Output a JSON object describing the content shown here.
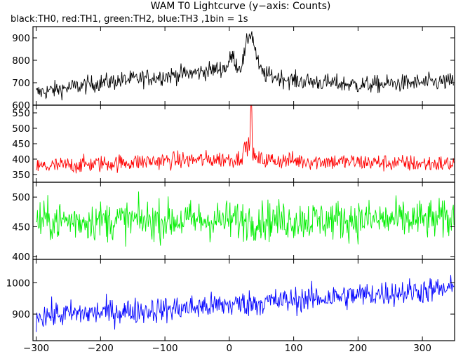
{
  "chart_data": {
    "type": "line",
    "title": "WAM T0 Lightcurve (y−axis: Counts)",
    "subtitle": "black:TH0, red:TH1, green:TH2, blue:TH3 ,1bin = 1s",
    "xlabel": "",
    "xlim": [
      -305,
      350
    ],
    "x_ticks": [
      -300,
      -200,
      -100,
      0,
      100,
      200,
      300
    ],
    "x_tick_labels": [
      "−300",
      "−200",
      "−100",
      "0",
      "100",
      "200",
      "300"
    ],
    "bin_seconds": 1,
    "grid": false,
    "series": [
      {
        "name": "TH0",
        "color": "#000000",
        "ylim": [
          600,
          950
        ],
        "y_ticks": [
          600,
          700,
          800,
          900
        ],
        "baseline": [
          [
            -300,
            655
          ],
          [
            -200,
            700
          ],
          [
            -100,
            730
          ],
          [
            -50,
            745
          ],
          [
            0,
            770
          ],
          [
            100,
            710
          ],
          [
            200,
            690
          ],
          [
            300,
            700
          ],
          [
            350,
            705
          ]
        ],
        "noise": 28,
        "peaks": [
          {
            "x": 33,
            "height": 170,
            "width": 10
          },
          {
            "x": 5,
            "height": 50,
            "width": 6
          }
        ],
        "notes": "dip near x=-300 and x=150"
      },
      {
        "name": "TH1",
        "color": "#ff0000",
        "ylim": [
          325,
          575
        ],
        "y_ticks": [
          350,
          400,
          450,
          500,
          550
        ],
        "baseline": [
          [
            -300,
            375
          ],
          [
            -200,
            385
          ],
          [
            -100,
            395
          ],
          [
            0,
            400
          ],
          [
            100,
            395
          ],
          [
            200,
            390
          ],
          [
            300,
            385
          ],
          [
            350,
            385
          ]
        ],
        "noise": 20,
        "peaks": [
          {
            "x": 34,
            "height": 180,
            "width": 1.5
          },
          {
            "x": 28,
            "height": 45,
            "width": 8
          }
        ]
      },
      {
        "name": "TH2",
        "color": "#00ee00",
        "ylim": [
          395,
          525
        ],
        "y_ticks": [
          400,
          450,
          500
        ],
        "baseline": [
          [
            -300,
            460
          ],
          [
            350,
            462
          ]
        ],
        "noise": 24,
        "peaks": []
      },
      {
        "name": "TH3",
        "color": "#0000ff",
        "ylim": [
          815,
          1075
        ],
        "y_ticks": [
          900,
          1000
        ],
        "baseline": [
          [
            -300,
            895
          ],
          [
            -200,
            905
          ],
          [
            -100,
            915
          ],
          [
            0,
            930
          ],
          [
            100,
            945
          ],
          [
            200,
            960
          ],
          [
            300,
            975
          ],
          [
            350,
            980
          ]
        ],
        "noise": 30,
        "peaks": []
      }
    ]
  }
}
